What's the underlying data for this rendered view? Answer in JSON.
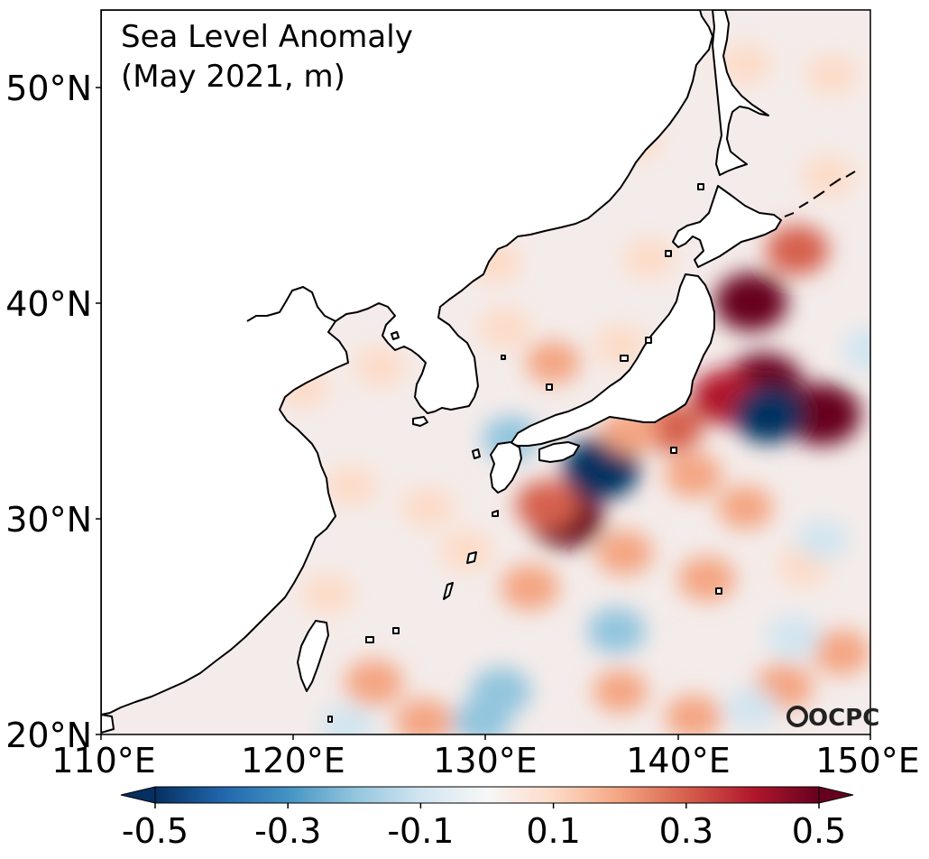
{
  "map": {
    "title_line1": "Sea Level Anomaly",
    "title_line2": "(May 2021, m)",
    "logo": "OCPC",
    "lat_ticks": [
      "20°N",
      "30°N",
      "40°N",
      "50°N"
    ],
    "lon_ticks": [
      "110°E",
      "120°E",
      "130°E",
      "140°E",
      "150°E"
    ],
    "extent": {
      "lon": [
        110,
        150
      ],
      "lat": [
        20,
        53.5
      ]
    },
    "colorbar": {
      "ticks": [
        "-0.5",
        "-0.3",
        "-0.1",
        "0.1",
        "0.3",
        "0.5"
      ],
      "range": [
        -0.5,
        0.5
      ],
      "colormap": "RdBu_r",
      "colors": [
        "#053061",
        "#2166ac",
        "#4393c3",
        "#92c5de",
        "#d1e5f0",
        "#f7f7f7",
        "#fddbc7",
        "#f4a582",
        "#d6604d",
        "#b2182b",
        "#67001f"
      ],
      "extend": "both"
    },
    "anomalies": [
      {
        "lon": 144.5,
        "lat": 36.2,
        "value": 0.55
      },
      {
        "lon": 147.5,
        "lat": 34.8,
        "value": 0.55
      },
      {
        "lon": 142.5,
        "lat": 35.6,
        "value": 0.4
      },
      {
        "lon": 143.8,
        "lat": 40.0,
        "value": 0.48
      },
      {
        "lon": 146.2,
        "lat": 42.4,
        "value": 0.3
      },
      {
        "lon": 134.2,
        "lat": 30.0,
        "value": 0.5
      },
      {
        "lon": 133.2,
        "lat": 30.6,
        "value": 0.3
      },
      {
        "lon": 136.0,
        "lat": 32.3,
        "value": -0.55
      },
      {
        "lon": 144.7,
        "lat": 34.8,
        "value": -0.45
      },
      {
        "lon": 139.7,
        "lat": 34.2,
        "value": 0.28
      },
      {
        "lon": 137.5,
        "lat": 34.0,
        "value": 0.2
      },
      {
        "lon": 140.8,
        "lat": 32.0,
        "value": 0.2
      },
      {
        "lon": 137.2,
        "lat": 28.4,
        "value": 0.2
      },
      {
        "lon": 132.3,
        "lat": 26.8,
        "value": 0.22
      },
      {
        "lon": 141.5,
        "lat": 27.2,
        "value": 0.2
      },
      {
        "lon": 143.5,
        "lat": 30.5,
        "value": 0.16
      },
      {
        "lon": 146.5,
        "lat": 27.8,
        "value": 0.12
      },
      {
        "lon": 145.5,
        "lat": 22.2,
        "value": 0.22
      },
      {
        "lon": 148.5,
        "lat": 23.8,
        "value": 0.2
      },
      {
        "lon": 137.0,
        "lat": 22.0,
        "value": 0.15
      },
      {
        "lon": 140.8,
        "lat": 20.8,
        "value": 0.18
      },
      {
        "lon": 124.2,
        "lat": 22.4,
        "value": 0.22
      },
      {
        "lon": 126.8,
        "lat": 20.6,
        "value": 0.2
      },
      {
        "lon": 130.8,
        "lat": 22.0,
        "value": -0.25
      },
      {
        "lon": 129.8,
        "lat": 20.6,
        "value": -0.2
      },
      {
        "lon": 136.8,
        "lat": 24.8,
        "value": -0.22
      },
      {
        "lon": 146.0,
        "lat": 24.5,
        "value": -0.15
      },
      {
        "lon": 143.8,
        "lat": 21.2,
        "value": -0.12
      },
      {
        "lon": 147.5,
        "lat": 29.0,
        "value": -0.1
      },
      {
        "lon": 150.0,
        "lat": 37.8,
        "value": -0.15
      },
      {
        "lon": 122.8,
        "lat": 20.4,
        "value": -0.15
      },
      {
        "lon": 131.3,
        "lat": 33.7,
        "value": -0.18
      },
      {
        "lon": 130.5,
        "lat": 41.8,
        "value": 0.12
      },
      {
        "lon": 133.5,
        "lat": 37.2,
        "value": 0.15
      },
      {
        "lon": 131.0,
        "lat": 38.8,
        "value": 0.12
      },
      {
        "lon": 137.0,
        "lat": 38.0,
        "value": 0.12
      },
      {
        "lon": 138.5,
        "lat": 42.0,
        "value": 0.1
      },
      {
        "lon": 137.8,
        "lat": 47.5,
        "value": 0.08
      },
      {
        "lon": 124.5,
        "lat": 37.0,
        "value": 0.1
      },
      {
        "lon": 120.5,
        "lat": 36.0,
        "value": 0.08
      },
      {
        "lon": 123.0,
        "lat": 31.5,
        "value": 0.1
      },
      {
        "lon": 127.0,
        "lat": 30.5,
        "value": 0.12
      },
      {
        "lon": 129.0,
        "lat": 28.5,
        "value": 0.12
      },
      {
        "lon": 147.8,
        "lat": 45.8,
        "value": 0.12
      },
      {
        "lon": 148.0,
        "lat": 50.5,
        "value": 0.1
      },
      {
        "lon": 143.5,
        "lat": 51.0,
        "value": 0.1
      },
      {
        "lon": 121.8,
        "lat": 26.5,
        "value": 0.1
      }
    ]
  }
}
